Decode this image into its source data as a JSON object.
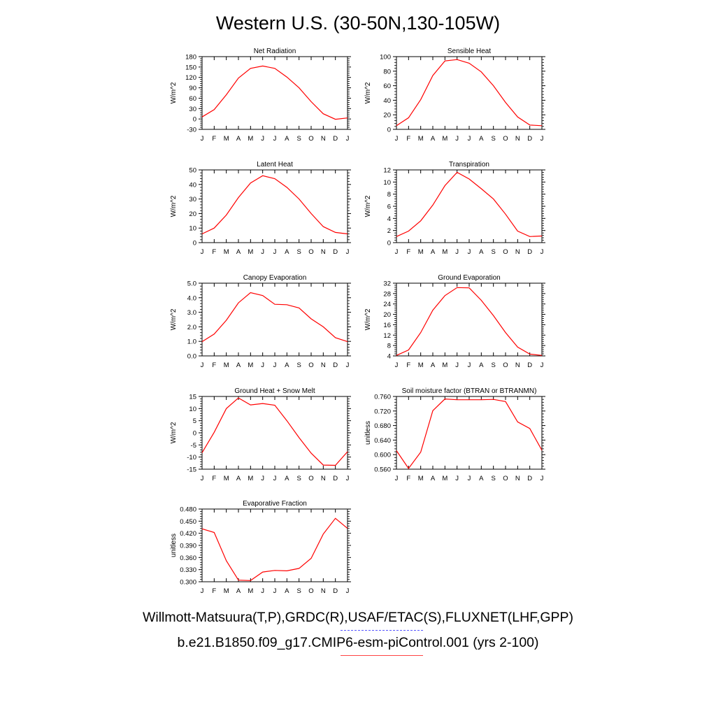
{
  "title": "Western U.S. (30-50N,130-105W)",
  "months": [
    "J",
    "F",
    "M",
    "A",
    "M",
    "J",
    "J",
    "A",
    "S",
    "O",
    "N",
    "D",
    "J"
  ],
  "legend": [
    {
      "label": "Willmott-Matsuura(T,P),GRDC(R),USAF/ETAC(S),FLUXNET(LHF,GPP)",
      "style": "dashed",
      "color": "#5555ff"
    },
    {
      "label": "b.e21.B1850.f09_g17.CMIP6-esm-piControl.001 (yrs 2-100)",
      "style": "solid",
      "color": "#ff0000"
    }
  ],
  "line_color": "#ff0000",
  "chart_data": [
    {
      "type": "line",
      "title": "Net Radiation",
      "ylabel": "W/m^2",
      "ylim": [
        -30,
        180
      ],
      "yticks": [
        "-30",
        "0",
        "30",
        "60",
        "90",
        "120",
        "150",
        "180"
      ],
      "series": [
        {
          "values": [
            6,
            27,
            70,
            118,
            146,
            153,
            146,
            121,
            90,
            50,
            15,
            -1,
            3
          ]
        }
      ]
    },
    {
      "type": "line",
      "title": "Sensible Heat",
      "ylabel": "W/m^2",
      "ylim": [
        0,
        100
      ],
      "yticks": [
        "0",
        "20",
        "40",
        "60",
        "80",
        "100"
      ],
      "series": [
        {
          "values": [
            5,
            16,
            41,
            74,
            94,
            96,
            91,
            79,
            60,
            37,
            17,
            6,
            5
          ]
        }
      ]
    },
    {
      "type": "line",
      "title": "Latent Heat",
      "ylabel": "W/m^2",
      "ylim": [
        0,
        50
      ],
      "yticks": [
        "0",
        "10",
        "20",
        "30",
        "40",
        "50"
      ],
      "series": [
        {
          "values": [
            6,
            10,
            19,
            31,
            41,
            46,
            44,
            38,
            30,
            20,
            11,
            7,
            6
          ]
        }
      ]
    },
    {
      "type": "line",
      "title": "Transpiration",
      "ylabel": "W/m^2",
      "ylim": [
        0,
        12
      ],
      "yticks": [
        "0",
        "2",
        "4",
        "6",
        "8",
        "10",
        "12"
      ],
      "series": [
        {
          "values": [
            1.0,
            1.9,
            3.6,
            6.2,
            9.4,
            11.6,
            10.5,
            8.9,
            7.2,
            4.7,
            1.9,
            1.0,
            1.1
          ]
        }
      ]
    },
    {
      "type": "line",
      "title": "Canopy Evaporation",
      "ylabel": "W/m^2",
      "ylim": [
        0,
        5
      ],
      "yticks": [
        "0.0",
        "1.0",
        "2.0",
        "3.0",
        "4.0",
        "5.0"
      ],
      "series": [
        {
          "values": [
            0.98,
            1.5,
            2.45,
            3.65,
            4.35,
            4.15,
            3.55,
            3.52,
            3.3,
            2.55,
            2.0,
            1.25,
            0.98
          ]
        }
      ]
    },
    {
      "type": "line",
      "title": "Ground Evaporation",
      "ylabel": "W/m^2",
      "ylim": [
        4,
        32
      ],
      "yticks": [
        "4",
        "8",
        "12",
        "16",
        "20",
        "24",
        "28",
        "32"
      ],
      "series": [
        {
          "values": [
            4.2,
            6.3,
            13.0,
            21.6,
            27.2,
            30.3,
            30.2,
            25.4,
            19.5,
            13.0,
            7.4,
            4.7,
            4.2
          ]
        }
      ]
    },
    {
      "type": "line",
      "title": "Ground Heat + Snow Melt",
      "ylabel": "W/m^2",
      "ylim": [
        -15,
        15
      ],
      "yticks": [
        "-15",
        "-10",
        "-5",
        "0",
        "5",
        "10",
        "15"
      ],
      "series": [
        {
          "values": [
            -8.2,
            0.2,
            10.0,
            14.4,
            11.5,
            12.1,
            11.4,
            5.0,
            -2.0,
            -8.4,
            -13.3,
            -13.4,
            -7.8
          ]
        }
      ]
    },
    {
      "type": "line",
      "title": "Soil moisture factor (BTRAN or BTRANMN)",
      "ylabel": "unitless",
      "ylim": [
        0.56,
        0.76
      ],
      "yticks": [
        "0.560",
        "0.600",
        "0.640",
        "0.680",
        "0.720",
        "0.760"
      ],
      "series": [
        {
          "values": [
            0.611,
            0.562,
            0.607,
            0.721,
            0.753,
            0.751,
            0.751,
            0.751,
            0.752,
            0.746,
            0.69,
            0.672,
            0.612
          ]
        }
      ]
    },
    {
      "type": "line",
      "title": "Evaporative Fraction",
      "ylabel": "unitless",
      "ylim": [
        0.3,
        0.48
      ],
      "yticks": [
        "0.300",
        "0.330",
        "0.360",
        "0.390",
        "0.420",
        "0.450",
        "0.480"
      ],
      "series": [
        {
          "values": [
            0.431,
            0.422,
            0.352,
            0.304,
            0.303,
            0.324,
            0.328,
            0.327,
            0.333,
            0.358,
            0.418,
            0.457,
            0.432
          ]
        }
      ]
    }
  ]
}
